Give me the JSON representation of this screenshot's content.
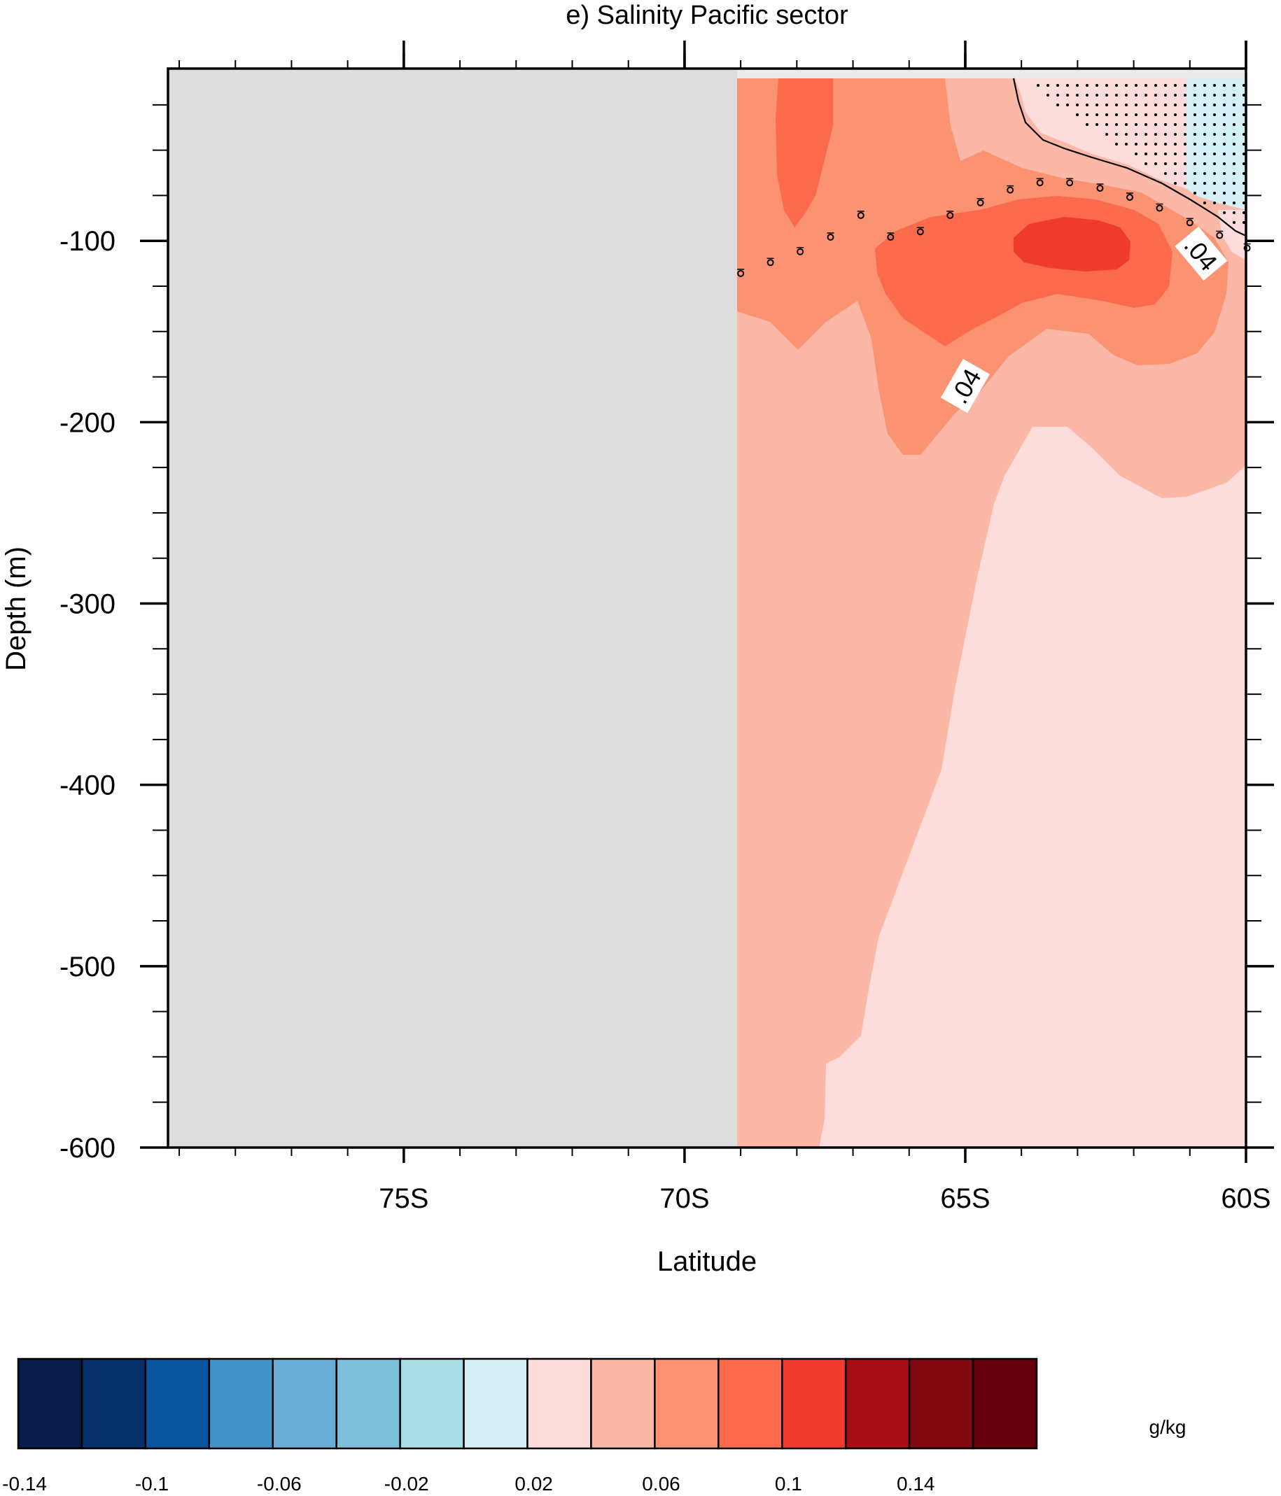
{
  "chart_data": {
    "type": "contour",
    "title": "e) Salinity Pacific sector",
    "xlabel": "Latitude",
    "ylabel": "Depth (m)",
    "xlim": [
      -79.2,
      -60
    ],
    "ylim": [
      -600,
      -5
    ],
    "x_ticks": [
      {
        "value": -75,
        "label": "75S"
      },
      {
        "value": -70,
        "label": "70S"
      },
      {
        "value": -65,
        "label": "65S"
      },
      {
        "value": -60,
        "label": "60S"
      }
    ],
    "y_ticks": [
      {
        "value": -100,
        "label": "-100"
      },
      {
        "value": -200,
        "label": "-200"
      },
      {
        "value": -300,
        "label": "-300"
      },
      {
        "value": -400,
        "label": "-400"
      },
      {
        "value": -500,
        "label": "-500"
      },
      {
        "value": -600,
        "label": "-600"
      }
    ],
    "missing_region": {
      "x_from": -79.2,
      "x_to": -69.05,
      "color": "#dddddd"
    },
    "contour_labels": [
      {
        "text": ".04",
        "x": -65,
        "y": -180,
        "angle": -60
      },
      {
        "text": ".04",
        "x": -60.8,
        "y": -107,
        "angle": 50
      }
    ],
    "legend": {
      "unit": "g/kg",
      "levels": [
        "-0.14",
        "-0.1",
        "-0.06",
        "-0.02",
        "0.02",
        "0.06",
        "0.1",
        "0.14"
      ],
      "colors": [
        "#081d49",
        "#08306b",
        "#08549e",
        "#4192c6",
        "#6aaed6",
        "#7ebfd9",
        "#aadce6",
        "#d6f0f8",
        "#fddcdc",
        "#fbb8a6",
        "#fb9271",
        "#fb6a4a",
        "#ef3b2c",
        "#a50f15",
        "#800a10",
        "#67000d"
      ]
    },
    "mixed_layer_markers": [
      {
        "x": -69.0,
        "y": -118
      },
      {
        "x": -68.47,
        "y": -112
      },
      {
        "x": -67.94,
        "y": -106
      },
      {
        "x": -67.4,
        "y": -98
      },
      {
        "x": -66.86,
        "y": -86
      },
      {
        "x": -66.33,
        "y": -98
      },
      {
        "x": -65.8,
        "y": -95
      },
      {
        "x": -65.27,
        "y": -86
      },
      {
        "x": -64.73,
        "y": -79
      },
      {
        "x": -64.2,
        "y": -72
      },
      {
        "x": -63.67,
        "y": -68
      },
      {
        "x": -63.14,
        "y": -68
      },
      {
        "x": -62.6,
        "y": -71
      },
      {
        "x": -62.07,
        "y": -76
      },
      {
        "x": -61.54,
        "y": -82
      },
      {
        "x": -61.0,
        "y": -90
      },
      {
        "x": -60.47,
        "y": -97
      },
      {
        "x": -59.98,
        "y": -104
      }
    ]
  }
}
